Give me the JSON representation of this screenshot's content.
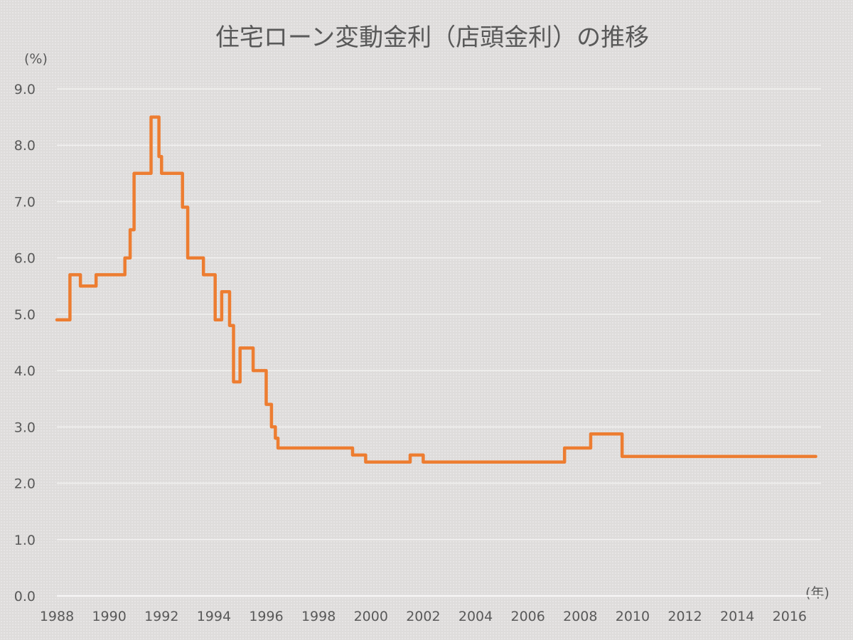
{
  "chart_data": {
    "type": "line",
    "title": "住宅ローン変動金利（店頭金利）の推移",
    "y_unit_label": "(%)",
    "x_unit_label": "(年)",
    "xlim": [
      1988,
      2017.2
    ],
    "ylim": [
      0,
      9
    ],
    "y_ticks": [
      "0.0",
      "1.0",
      "2.0",
      "3.0",
      "4.0",
      "5.0",
      "6.0",
      "7.0",
      "8.0",
      "9.0"
    ],
    "x_ticks": [
      "1988",
      "1990",
      "1992",
      "1994",
      "1996",
      "1998",
      "2000",
      "2002",
      "2004",
      "2006",
      "2008",
      "2010",
      "2012",
      "2014",
      "2016"
    ],
    "grid": true,
    "legend": "none",
    "line_color": "#ed7d31",
    "series": [
      {
        "step": true,
        "x": [
          1988.0,
          1988.3,
          1988.5,
          1988.9,
          1989.3,
          1989.5,
          1990.6,
          1990.8,
          1990.95,
          1991.05,
          1991.6,
          1991.9,
          1992.0,
          1992.5,
          1992.8,
          1993.0,
          1993.6,
          1993.9,
          1994.05,
          1994.2,
          1994.3,
          1994.5,
          1994.6,
          1994.75,
          1995.0,
          1995.5,
          1996.0,
          1996.2,
          1996.35,
          1996.45,
          1999.3,
          1999.8,
          2001.5,
          2002.0,
          2007.4,
          2008.4,
          2009.6,
          2017.0
        ],
        "y": [
          4.9,
          4.9,
          5.7,
          5.5,
          5.5,
          5.7,
          6.0,
          6.5,
          7.5,
          7.5,
          8.5,
          7.8,
          7.5,
          7.5,
          6.9,
          6.0,
          5.7,
          5.7,
          4.9,
          4.9,
          5.4,
          5.4,
          4.8,
          3.8,
          4.4,
          4.0,
          3.4,
          3.0,
          2.8,
          2.625,
          2.5,
          2.375,
          2.5,
          2.375,
          2.625,
          2.875,
          2.475,
          2.475
        ]
      }
    ]
  }
}
